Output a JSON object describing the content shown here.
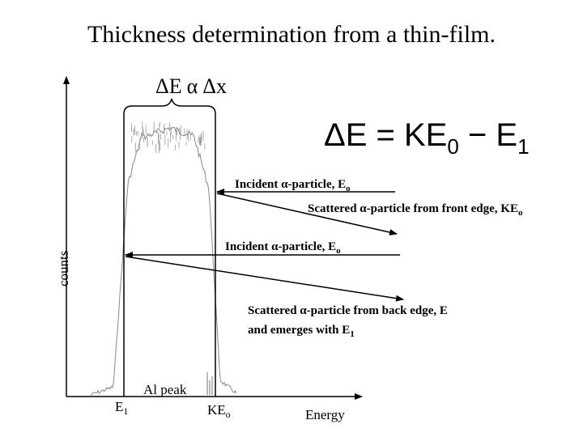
{
  "slide": {
    "title": "Thickness determination from a thin-film.",
    "proportionality": {
      "lhs": "ΔE",
      "symbol": "α",
      "rhs": "Δx"
    },
    "formula": {
      "lhs": "ΔE = KE",
      "sub1": "0",
      "mid": " − E",
      "sub2": "1"
    },
    "axes": {
      "y_label": "counts",
      "x_label": "Energy",
      "tick_e1": "E",
      "tick_e1_sub": "1",
      "tick_keo": "KE",
      "tick_keo_sub": "o"
    },
    "annotations": {
      "incident_top": {
        "text": "Incident α-particle, E",
        "sub": "o"
      },
      "scattered_front": {
        "text": "Scattered α-particle from front edge, KE",
        "sub": "o"
      },
      "incident_mid": {
        "text": "Incident α-particle, E",
        "sub": "o"
      },
      "scattered_back_1": "Scattered α-particle from back edge, E",
      "scattered_back_2": {
        "text": "and emerges with E",
        "sub": "1"
      },
      "al_peak": "Al peak"
    }
  }
}
